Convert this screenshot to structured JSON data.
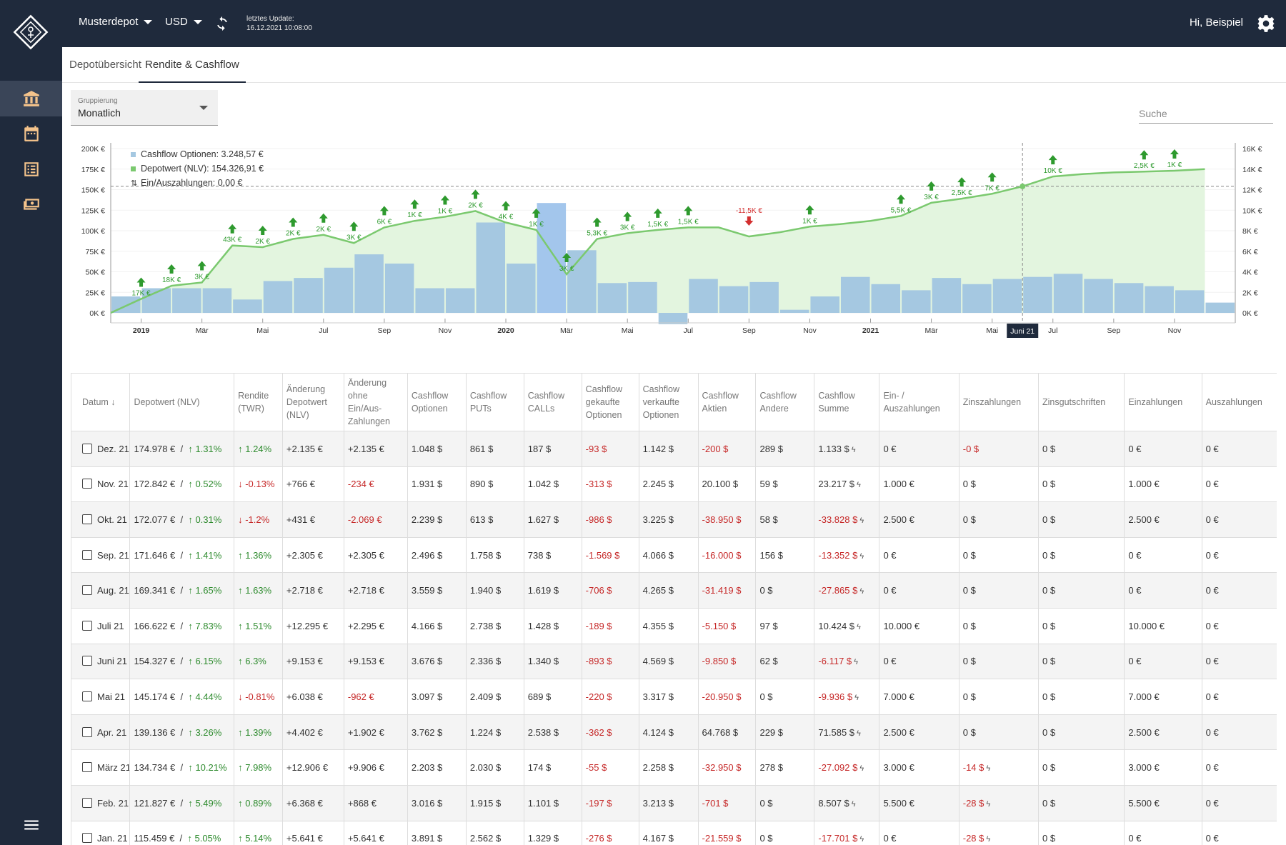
{
  "header": {
    "depot_label": "Musterdepot",
    "currency_label": "USD",
    "update_label": "letztes Update:",
    "update_time": "16.12.2021 10:08:00",
    "greeting": "Hi, Beispiel"
  },
  "tabs": [
    {
      "label": "Depotübersicht",
      "active": false
    },
    {
      "label": "Rendite & Cashflow",
      "active": true
    }
  ],
  "grouping": {
    "label": "Gruppierung",
    "value": "Monatlich"
  },
  "search": {
    "placeholder": "Suche"
  },
  "sidebar": {
    "items": [
      {
        "icon": "bank-icon",
        "active": true
      },
      {
        "icon": "calendar-icon",
        "active": false
      },
      {
        "icon": "list-icon",
        "active": false
      },
      {
        "icon": "cash-icon",
        "active": false
      },
      {
        "icon": "menu-icon",
        "active": false
      }
    ]
  },
  "colors": {
    "nav": "#1f2a3c",
    "bar": "#a5c8e1",
    "bar_highlight": "#a3c6ec",
    "line": "#7bc96f",
    "area": "#e3f5df",
    "positive": "#2e8b2e",
    "negative": "#c62828",
    "arrow_up": "#2e9a2e",
    "arrow_down": "#d32f2f"
  },
  "chart_data": {
    "type": "bar",
    "legend": [
      {
        "label": "Cashflow Optionen: 3.248,57 €",
        "color": "#a5c8e1"
      },
      {
        "label": "Depotwert (NLV): 154.326,91 €",
        "color": "#7bc96f"
      },
      {
        "label": "Ein/Auszahlungen: 0,00 €"
      }
    ],
    "left_ticks": [
      "0K €",
      "25K €",
      "50K €",
      "75K €",
      "100K €",
      "125K €",
      "150K €",
      "175K €",
      "200K €"
    ],
    "right_ticks": [
      "0K €",
      "2K €",
      "4K €",
      "6K €",
      "8K €",
      "10K €",
      "12K €",
      "14K €",
      "16K €"
    ],
    "left_ylim": [
      0,
      200000
    ],
    "right_ylim": [
      0,
      16000
    ],
    "x_labels": [
      {
        "label": "2019",
        "month": 1,
        "bold": true
      },
      {
        "label": "Mär",
        "month": 3
      },
      {
        "label": "Mai",
        "month": 5
      },
      {
        "label": "Jul",
        "month": 7
      },
      {
        "label": "Sep",
        "month": 9
      },
      {
        "label": "Nov",
        "month": 11
      },
      {
        "label": "2020",
        "month": 13,
        "bold": true
      },
      {
        "label": "Mär",
        "month": 15
      },
      {
        "label": "Mai",
        "month": 17
      },
      {
        "label": "Jul",
        "month": 19
      },
      {
        "label": "Sep",
        "month": 21
      },
      {
        "label": "Nov",
        "month": 23
      },
      {
        "label": "2021",
        "month": 25,
        "bold": true
      },
      {
        "label": "Mär",
        "month": 27
      },
      {
        "label": "Mai",
        "month": 29
      },
      {
        "label": "Jul",
        "month": 31
      },
      {
        "label": "Sep",
        "month": 33
      },
      {
        "label": "Nov",
        "month": 35
      }
    ],
    "crosshair_label": "Juni 21",
    "crosshair_month": 30,
    "series": [
      {
        "name": "Cashflow Optionen",
        "axis": "right",
        "values": [
          1600,
          2400,
          2400,
          2400,
          1300,
          3100,
          3400,
          4400,
          5700,
          4800,
          2400,
          2400,
          8800,
          4800,
          10700,
          6100,
          2900,
          3000,
          -1100,
          3300,
          2600,
          3000,
          300,
          1600,
          3500,
          2800,
          2200,
          3400,
          2800,
          3300,
          3500,
          3800,
          3300,
          2900,
          2600,
          2200,
          1000
        ]
      },
      {
        "name": "Depotwert (NLV)",
        "axis": "left",
        "values": [
          0,
          17000,
          33000,
          37000,
          82000,
          80000,
          90000,
          95000,
          85000,
          104000,
          112000,
          117000,
          124000,
          110000,
          101000,
          47000,
          90000,
          97000,
          101000,
          104000,
          104000,
          93000,
          98000,
          105000,
          108000,
          112000,
          118000,
          134000,
          139000,
          145000,
          154000,
          166000,
          169000,
          171000,
          172000,
          173000,
          175000
        ]
      }
    ],
    "annotations": [
      {
        "month": 1,
        "label": "17K €",
        "dir": "up",
        "pos": "below"
      },
      {
        "month": 2,
        "label": "18K €",
        "dir": "up",
        "pos": "below"
      },
      {
        "month": 3,
        "label": "3K €",
        "dir": "up",
        "pos": "below"
      },
      {
        "month": 4,
        "label": "43K €",
        "dir": "up",
        "pos": "below"
      },
      {
        "month": 5,
        "label": "2K €",
        "dir": "up",
        "pos": "below"
      },
      {
        "month": 6,
        "label": "2K €",
        "dir": "up",
        "pos": "below"
      },
      {
        "month": 7,
        "label": "2K €",
        "dir": "up",
        "pos": "below"
      },
      {
        "month": 8,
        "label": "3K €",
        "dir": "up",
        "pos": "below"
      },
      {
        "month": 9,
        "label": "6K €",
        "dir": "up",
        "pos": "below"
      },
      {
        "month": 10,
        "label": "1K €",
        "dir": "up",
        "pos": "below"
      },
      {
        "month": 11,
        "label": "1K €",
        "dir": "up",
        "pos": "below"
      },
      {
        "month": 12,
        "label": "2K €",
        "dir": "up",
        "pos": "below"
      },
      {
        "month": 13,
        "label": "4K €",
        "dir": "up",
        "pos": "below"
      },
      {
        "month": 14,
        "label": "1K €",
        "dir": "up",
        "pos": "below"
      },
      {
        "month": 15,
        "label": "3K €",
        "dir": "up",
        "pos": "below"
      },
      {
        "month": 16,
        "label": "5,3K €",
        "dir": "up",
        "pos": "below"
      },
      {
        "month": 17,
        "label": "3K €",
        "dir": "up",
        "pos": "below"
      },
      {
        "month": 18,
        "label": "1,5K €",
        "dir": "up",
        "pos": "below"
      },
      {
        "month": 19,
        "label": "1,5K €",
        "dir": "up",
        "pos": "below"
      },
      {
        "month": 21,
        "label": "-11,5K €",
        "dir": "down",
        "pos": "above"
      },
      {
        "month": 23,
        "label": "1K €",
        "dir": "up",
        "pos": "below"
      },
      {
        "month": 26,
        "label": "5,5K €",
        "dir": "up",
        "pos": "below"
      },
      {
        "month": 27,
        "label": "3K €",
        "dir": "up",
        "pos": "below"
      },
      {
        "month": 28,
        "label": "2,5K €",
        "dir": "up",
        "pos": "below"
      },
      {
        "month": 29,
        "label": "7K €",
        "dir": "up",
        "pos": "below"
      },
      {
        "month": 31,
        "label": "10K €",
        "dir": "up",
        "pos": "below"
      },
      {
        "month": 34,
        "label": "2,5K €",
        "dir": "up",
        "pos": "below"
      },
      {
        "month": 35,
        "label": "1K €",
        "dir": "up",
        "pos": "below"
      }
    ]
  },
  "table": {
    "headers": [
      "Datum",
      "Depotwert (NLV)",
      "Rendite (TWR)",
      "Änderung Depotwert (NLV)",
      "Änderung ohne Ein/Aus-Zahlungen",
      "Cashflow Optionen",
      "Cashflow PUTs",
      "Cashflow CALLs",
      "Cashflow gekaufte Optionen",
      "Cashflow verkaufte Optionen",
      "Cashflow Aktien",
      "Cashflow Andere",
      "Cashflow Summe",
      "Ein- / Auszahlungen",
      "Zinszahlungen",
      "Zinsgutschriften",
      "Einzahlungen",
      "Auszahlungen"
    ],
    "rows": [
      {
        "date": "Dez. 21",
        "nlv": "174.978 €",
        "nlv_pct": "1.31%",
        "twr": "1.24%",
        "twr_up": true,
        "chg": "+2.135 €",
        "chg_ex": "+2.135 €",
        "opt": "1.048 $",
        "puts": "861 $",
        "calls": "187 $",
        "bought": "-93 $",
        "sold": "1.142 $",
        "stocks": "-200 $",
        "other": "289 $",
        "sum": "1.133 $",
        "inout": "0 €",
        "interest": "-0 $",
        "interest_bolt": false,
        "credit": "0 $",
        "deposits": "0 €",
        "withdrawals": "0 €"
      },
      {
        "date": "Nov. 21",
        "nlv": "172.842 €",
        "nlv_pct": "0.52%",
        "twr": "-0.13%",
        "twr_up": false,
        "chg": "+766 €",
        "chg_ex": "-234 €",
        "opt": "1.931 $",
        "puts": "890 $",
        "calls": "1.042 $",
        "bought": "-313 $",
        "sold": "2.245 $",
        "stocks": "20.100 $",
        "other": "59 $",
        "sum": "23.217 $",
        "inout": "1.000 €",
        "interest": "0 $",
        "interest_bolt": false,
        "credit": "0 $",
        "deposits": "1.000 €",
        "withdrawals": "0 €"
      },
      {
        "date": "Okt. 21",
        "nlv": "172.077 €",
        "nlv_pct": "0.31%",
        "twr": "-1.2%",
        "twr_up": false,
        "chg": "+431 €",
        "chg_ex": "-2.069 €",
        "opt": "2.239 $",
        "puts": "613 $",
        "calls": "1.627 $",
        "bought": "-986 $",
        "sold": "3.225 $",
        "stocks": "-38.950 $",
        "other": "58 $",
        "sum": "-33.828 $",
        "inout": "2.500 €",
        "interest": "0 $",
        "interest_bolt": false,
        "credit": "0 $",
        "deposits": "2.500 €",
        "withdrawals": "0 €"
      },
      {
        "date": "Sep. 21",
        "nlv": "171.646 €",
        "nlv_pct": "1.41%",
        "twr": "1.36%",
        "twr_up": true,
        "chg": "+2.305 €",
        "chg_ex": "+2.305 €",
        "opt": "2.496 $",
        "puts": "1.758 $",
        "calls": "738 $",
        "bought": "-1.569 $",
        "sold": "4.066 $",
        "stocks": "-16.000 $",
        "other": "156 $",
        "sum": "-13.352 $",
        "inout": "0 €",
        "interest": "0 $",
        "interest_bolt": false,
        "credit": "0 $",
        "deposits": "0 €",
        "withdrawals": "0 €"
      },
      {
        "date": "Aug. 21",
        "nlv": "169.341 €",
        "nlv_pct": "1.65%",
        "twr": "1.63%",
        "twr_up": true,
        "chg": "+2.718 €",
        "chg_ex": "+2.718 €",
        "opt": "3.559 $",
        "puts": "1.940 $",
        "calls": "1.619 $",
        "bought": "-706 $",
        "sold": "4.265 $",
        "stocks": "-31.419 $",
        "other": "0 $",
        "sum": "-27.865 $",
        "inout": "0 €",
        "interest": "0 $",
        "interest_bolt": false,
        "credit": "0 $",
        "deposits": "0 €",
        "withdrawals": "0 €"
      },
      {
        "date": "Juli 21",
        "nlv": "166.622 €",
        "nlv_pct": "7.83%",
        "twr": "1.51%",
        "twr_up": true,
        "chg": "+12.295 €",
        "chg_ex": "+2.295 €",
        "opt": "4.166 $",
        "puts": "2.738 $",
        "calls": "1.428 $",
        "bought": "-189 $",
        "sold": "4.355 $",
        "stocks": "-5.150 $",
        "other": "97 $",
        "sum": "10.424 $",
        "inout": "10.000 €",
        "interest": "0 $",
        "interest_bolt": false,
        "credit": "0 $",
        "deposits": "10.000 €",
        "withdrawals": "0 €"
      },
      {
        "date": "Juni 21",
        "nlv": "154.327 €",
        "nlv_pct": "6.15%",
        "twr": "6.3%",
        "twr_up": true,
        "chg": "+9.153 €",
        "chg_ex": "+9.153 €",
        "opt": "3.676 $",
        "puts": "2.336 $",
        "calls": "1.340 $",
        "bought": "-893 $",
        "sold": "4.569 $",
        "stocks": "-9.850 $",
        "other": "62 $",
        "sum": "-6.117 $",
        "inout": "0 €",
        "interest": "0 $",
        "interest_bolt": false,
        "credit": "0 $",
        "deposits": "0 €",
        "withdrawals": "0 €"
      },
      {
        "date": "Mai 21",
        "nlv": "145.174 €",
        "nlv_pct": "4.44%",
        "twr": "-0.81%",
        "twr_up": false,
        "chg": "+6.038 €",
        "chg_ex": "-962 €",
        "opt": "3.097 $",
        "puts": "2.409 $",
        "calls": "689 $",
        "bought": "-220 $",
        "sold": "3.317 $",
        "stocks": "-20.950 $",
        "other": "0 $",
        "sum": "-9.936 $",
        "inout": "7.000 €",
        "interest": "0 $",
        "interest_bolt": false,
        "credit": "0 $",
        "deposits": "7.000 €",
        "withdrawals": "0 €"
      },
      {
        "date": "Apr. 21",
        "nlv": "139.136 €",
        "nlv_pct": "3.26%",
        "twr": "1.39%",
        "twr_up": true,
        "chg": "+4.402 €",
        "chg_ex": "+1.902 €",
        "opt": "3.762 $",
        "puts": "1.224 $",
        "calls": "2.538 $",
        "bought": "-362 $",
        "sold": "4.124 $",
        "stocks": "64.768 $",
        "other": "229 $",
        "sum": "71.585 $",
        "inout": "2.500 €",
        "interest": "0 $",
        "interest_bolt": false,
        "credit": "0 $",
        "deposits": "2.500 €",
        "withdrawals": "0 €"
      },
      {
        "date": "März 21",
        "nlv": "134.734 €",
        "nlv_pct": "10.21%",
        "twr": "7.98%",
        "twr_up": true,
        "chg": "+12.906 €",
        "chg_ex": "+9.906 €",
        "opt": "2.203 $",
        "puts": "2.030 $",
        "calls": "174 $",
        "bought": "-55 $",
        "sold": "2.258 $",
        "stocks": "-32.950 $",
        "other": "278 $",
        "sum": "-27.092 $",
        "inout": "3.000 €",
        "interest": "-14 $",
        "interest_bolt": true,
        "credit": "0 $",
        "deposits": "3.000 €",
        "withdrawals": "0 €"
      },
      {
        "date": "Feb. 21",
        "nlv": "121.827 €",
        "nlv_pct": "5.49%",
        "twr": "0.89%",
        "twr_up": true,
        "chg": "+6.368 €",
        "chg_ex": "+868 €",
        "opt": "3.016 $",
        "puts": "1.915 $",
        "calls": "1.101 $",
        "bought": "-197 $",
        "sold": "3.213 $",
        "stocks": "-701 $",
        "other": "0 $",
        "sum": "8.507 $",
        "inout": "5.500 €",
        "interest": "-28 $",
        "interest_bolt": true,
        "credit": "0 $",
        "deposits": "5.500 €",
        "withdrawals": "0 €"
      },
      {
        "date": "Jan. 21",
        "nlv": "115.459 €",
        "nlv_pct": "5.05%",
        "twr": "5.14%",
        "twr_up": true,
        "chg": "+5.641 €",
        "chg_ex": "+5.641 €",
        "opt": "3.891 $",
        "puts": "2.562 $",
        "calls": "1.329 $",
        "bought": "-276 $",
        "sold": "4.167 $",
        "stocks": "-21.559 $",
        "other": "0 $",
        "sum": "-17.701 $",
        "inout": "0 €",
        "interest": "-28 $",
        "interest_bolt": true,
        "credit": "0 $",
        "deposits": "0 €",
        "withdrawals": "0 €"
      }
    ]
  }
}
